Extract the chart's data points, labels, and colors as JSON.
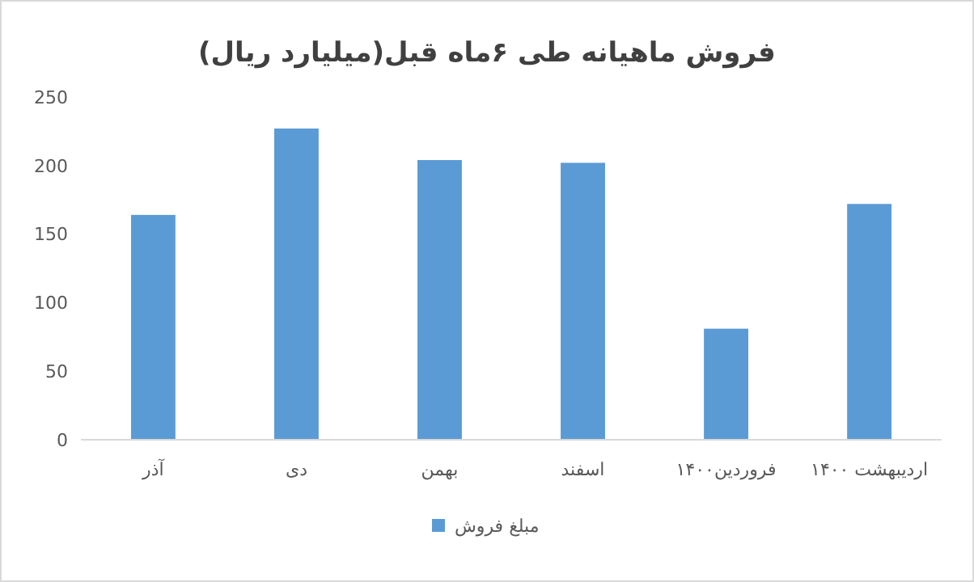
{
  "chart_data": {
    "type": "bar",
    "title": "فروش ماهیانه طی ۶ماه قبل(میلیارد ریال)",
    "categories": [
      "آذر",
      "دی",
      "بهمن",
      "اسفند",
      "فروردین۱۴۰۰",
      "اردیبهشت ۱۴۰۰"
    ],
    "series": [
      {
        "name": "مبلغ فروش",
        "color": "#5b9bd5",
        "values": [
          164,
          227,
          204,
          202,
          81,
          172
        ]
      }
    ],
    "ylim": [
      0,
      250
    ],
    "yticks": [
      0,
      50,
      100,
      150,
      200,
      250
    ],
    "grid": false,
    "legend": "bottom"
  }
}
